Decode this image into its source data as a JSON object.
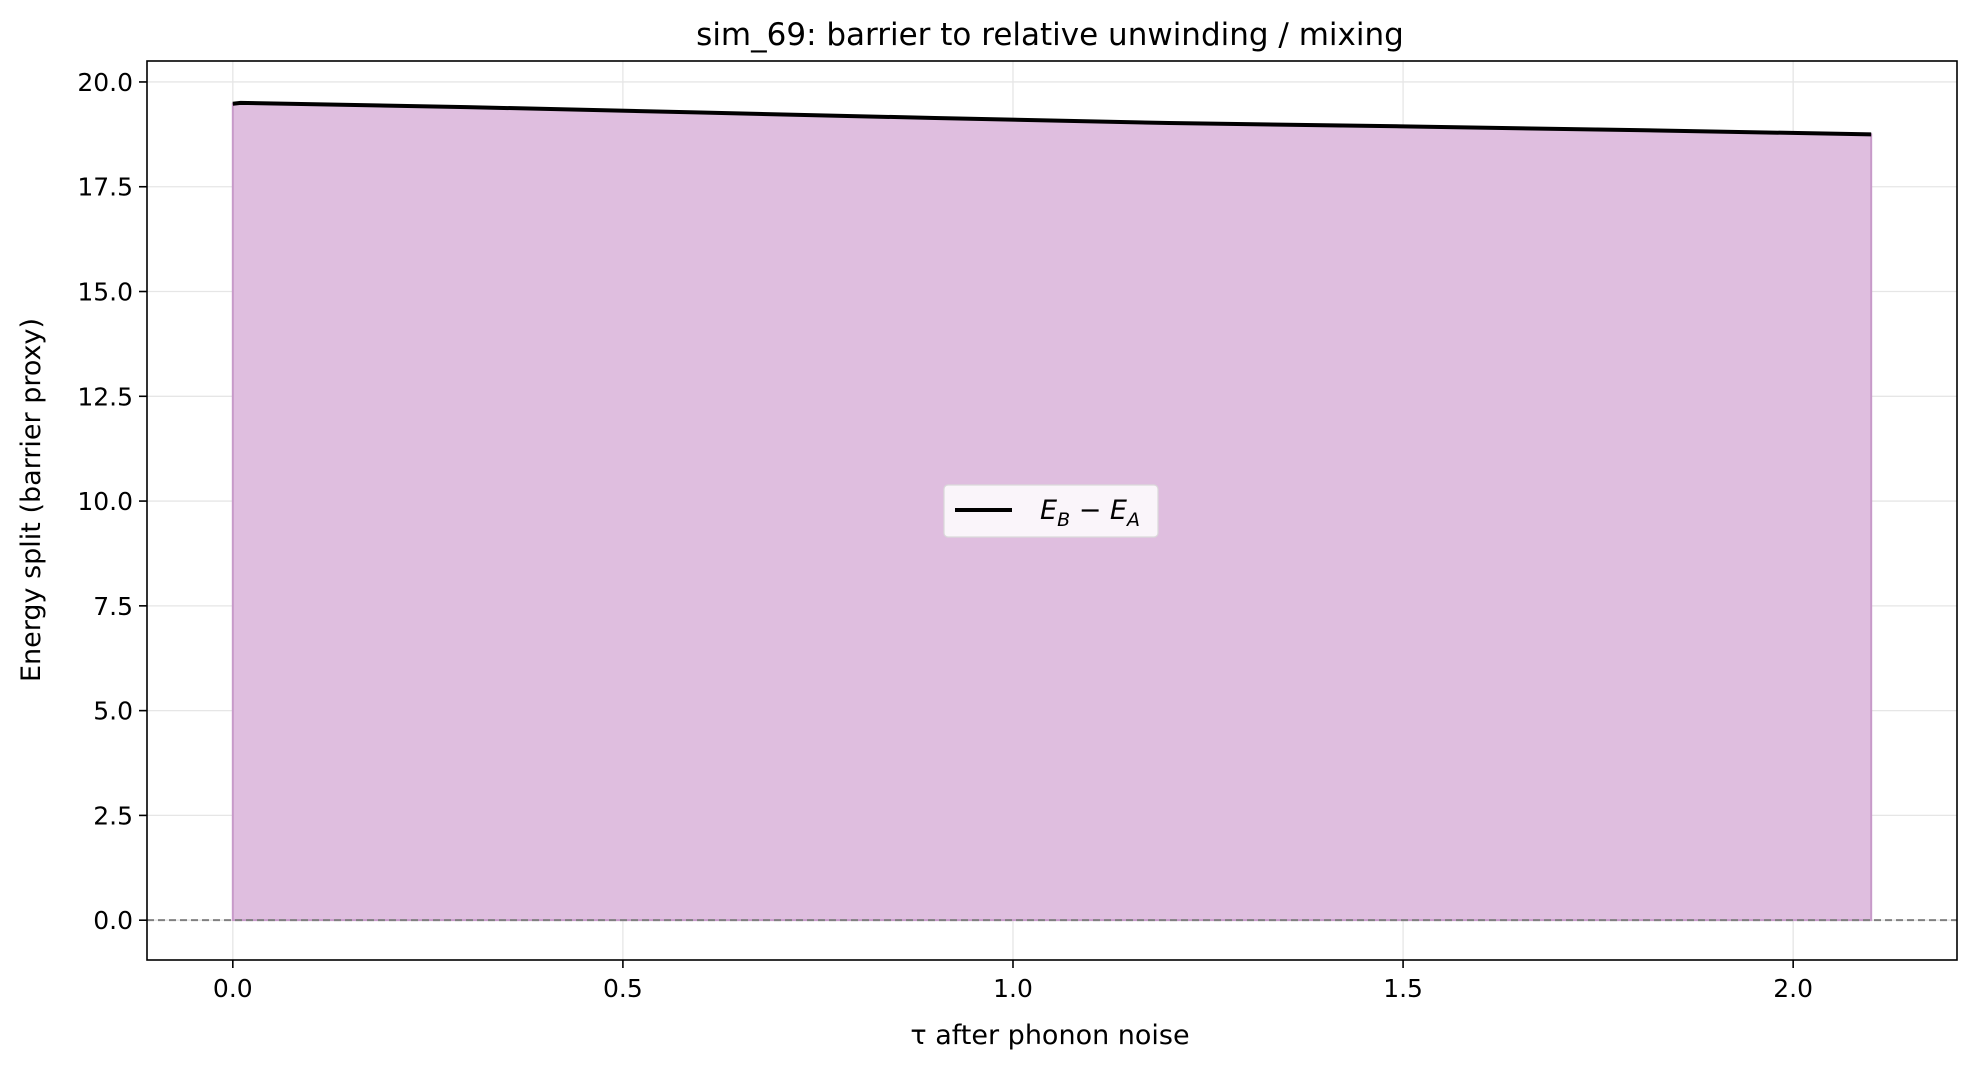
{
  "chart_data": {
    "type": "area",
    "title": "sim_69: barrier to relative unwinding / mixing",
    "xlabel": "τ after phonon noise",
    "ylabel": "Energy split (barrier proxy)",
    "xlim": [
      -0.11,
      2.21
    ],
    "ylim": [
      -0.95,
      20.5
    ],
    "xticks": [
      0.0,
      0.5,
      1.0,
      1.5,
      2.0
    ],
    "xtick_labels": [
      "0.0",
      "0.5",
      "1.0",
      "1.5",
      "2.0"
    ],
    "yticks": [
      0.0,
      2.5,
      5.0,
      7.5,
      10.0,
      12.5,
      15.0,
      17.5,
      20.0
    ],
    "ytick_labels": [
      "0.0",
      "2.5",
      "5.0",
      "7.5",
      "10.0",
      "12.5",
      "15.0",
      "17.5",
      "20.0"
    ],
    "grid": true,
    "legend_placement": "center",
    "reference_line": {
      "y": 0.0,
      "style": "dashed",
      "color": "#808080"
    },
    "series": [
      {
        "name": "E_B − E_A",
        "legend": {
          "base": "E",
          "sub1": "B",
          "mid": " − E",
          "sub2": "A"
        },
        "color": "#000000",
        "fill_color": "#dfbedf",
        "fill_edge_color": "#c79ac9",
        "x": [
          0.0,
          0.01,
          0.3,
          0.6,
          0.9,
          1.2,
          1.5,
          1.8,
          2.1
        ],
        "y": [
          19.48,
          19.5,
          19.4,
          19.27,
          19.14,
          19.02,
          18.94,
          18.85,
          18.75
        ]
      }
    ]
  }
}
